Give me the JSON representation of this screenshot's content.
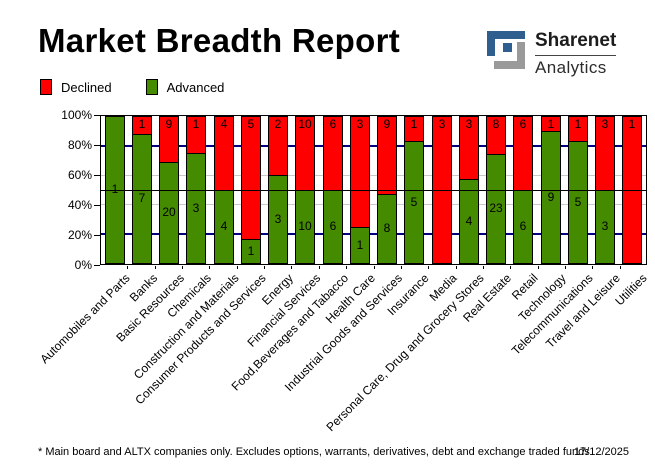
{
  "header": {
    "title": "Market Breadth Report"
  },
  "logo": {
    "name": "Sharenet",
    "sub": "Analytics",
    "mark_blue": "#2f5f8f",
    "mark_gray": "#9a9a9a"
  },
  "legend": {
    "declined": {
      "label": "Declined",
      "color": "#ff0000"
    },
    "advanced": {
      "label": "Advanced",
      "color": "#458b00"
    }
  },
  "footer": {
    "note": "* Main board and ALTX companies only. Excludes options, warrants, derivatives, debt and exchange traded funds",
    "date": "17/12/2025"
  },
  "chart_data": {
    "type": "bar",
    "stacked": true,
    "unit": "percent_of_total",
    "note": "Each bar normalized to 100%; numeric labels show company counts per segment",
    "title": "Market Breadth Report",
    "categories": [
      "Automobiles and Parts",
      "Banks",
      "Basic Resources",
      "Chemicals",
      "Construction and Materials",
      "Consumer Products and Services",
      "Energy",
      "Financial Services",
      "Food,Beverages and Tabacco",
      "Health Care",
      "Industrial Goods and Services",
      "Insurance",
      "Media",
      "Personal Care, Drug and Grocery Stores",
      "Real Estate",
      "Retail",
      "Technology",
      "Telecommunications",
      "Travel and Leisure",
      "Utilities"
    ],
    "series": [
      {
        "name": "Advanced",
        "color": "#458b00",
        "values": [
          1,
          7,
          20,
          3,
          4,
          1,
          3,
          10,
          6,
          1,
          8,
          5,
          0,
          4,
          23,
          6,
          9,
          5,
          3,
          0
        ]
      },
      {
        "name": "Declined",
        "color": "#ff0000",
        "values": [
          0,
          1,
          9,
          1,
          4,
          5,
          2,
          10,
          6,
          3,
          9,
          1,
          3,
          3,
          8,
          6,
          1,
          1,
          3,
          1
        ]
      }
    ],
    "y_ticks": [
      "0%",
      "20%",
      "40%",
      "60%",
      "80%",
      "100%"
    ],
    "ylim": [
      0,
      100
    ],
    "gridlines": {
      "navy_at": [
        20,
        80
      ],
      "gray_at": [
        40,
        60
      ],
      "black_at": [
        50
      ]
    },
    "legend_position": "top-left",
    "colors": {
      "navy_grid": "#000080",
      "gray_grid": "#c9c9c9"
    }
  }
}
